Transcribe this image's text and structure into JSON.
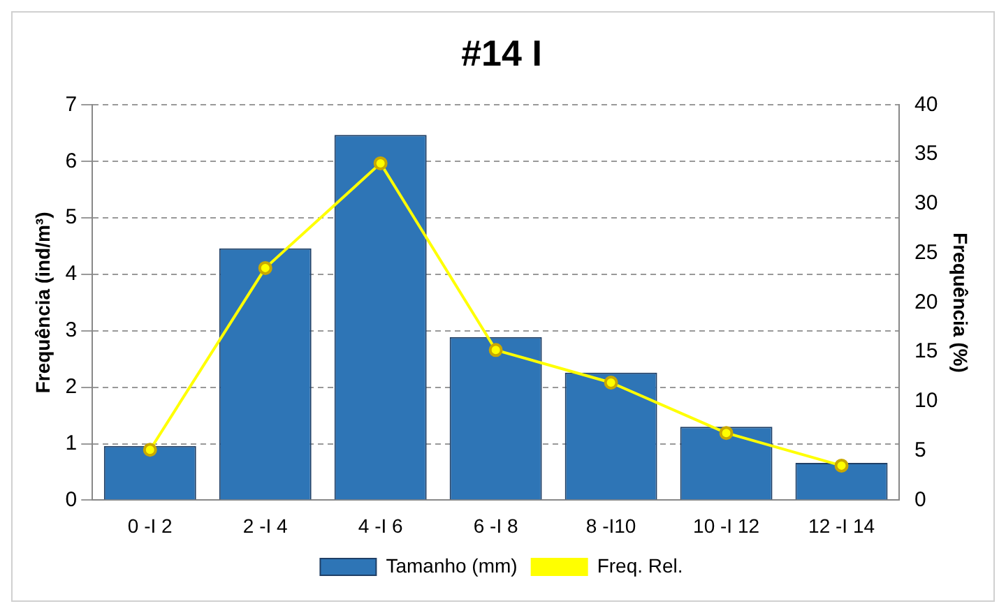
{
  "chart_data": {
    "type": "bar",
    "title": "#14 I",
    "ylabel": "Frequência (ind/m³)",
    "y2label": "Frequência (%)",
    "categories": [
      "0 -I 2",
      "2 -I 4",
      "4 -I 6",
      "6 -I 8",
      "8 -I10",
      "10 -I 12",
      "12 -I 14"
    ],
    "series": [
      {
        "name": "Tamanho (mm)",
        "color": "#2e75b6",
        "values": [
          0.96,
          4.46,
          6.47,
          2.89,
          2.26,
          1.3,
          0.66
        ]
      },
      {
        "name": "Freq. Rel.",
        "type": "line",
        "axis": "y2",
        "color": "#ffff00",
        "values": [
          5.1,
          23.5,
          34.1,
          15.2,
          11.9,
          6.8,
          3.5
        ]
      }
    ],
    "ylim": [
      0,
      7
    ],
    "yticks": [
      0,
      1,
      2,
      3,
      4,
      5,
      6,
      7
    ],
    "y2lim": [
      0,
      40
    ],
    "y2ticks": [
      0,
      5,
      10,
      15,
      20,
      25,
      30,
      35,
      40
    ],
    "grid": "y",
    "legend": "bottom",
    "marker": "circle",
    "line_style": "solid"
  }
}
